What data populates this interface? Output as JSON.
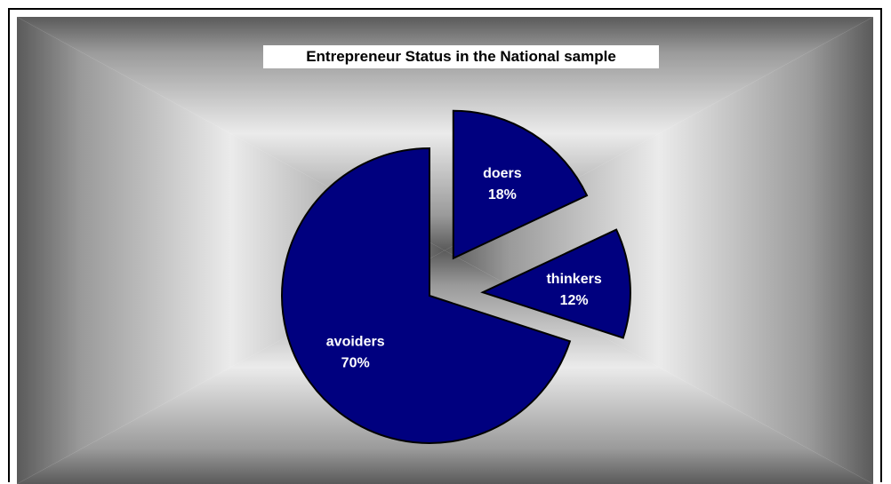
{
  "chart_data": {
    "type": "pie",
    "title": "Entrepreneur Status in the National sample",
    "slices": [
      {
        "label": "doers",
        "percent_text": "18%",
        "value": 18
      },
      {
        "label": "thinkers",
        "percent_text": "12%",
        "value": 12
      },
      {
        "label": "avoiders",
        "percent_text": "70%",
        "value": 70
      }
    ],
    "exploded": true,
    "legend": "none",
    "colors": {
      "slice_fill": "#00007F",
      "slice_stroke": "#000000",
      "label_text": "#FFFFFF",
      "background_outer": "#5A5A5A",
      "background_inner": "#EBEBEB"
    }
  }
}
